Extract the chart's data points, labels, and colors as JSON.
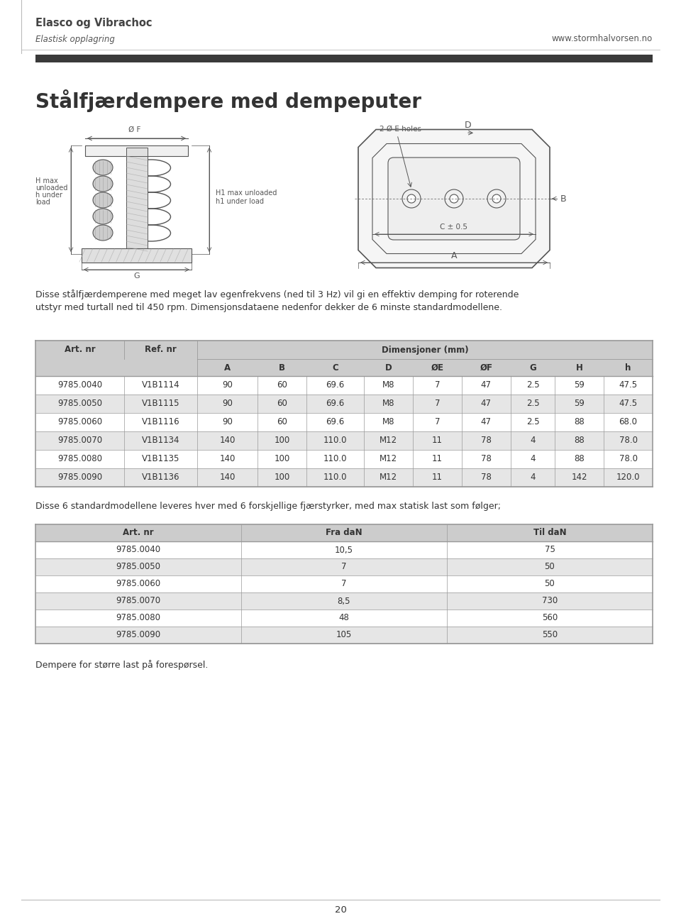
{
  "page_title": "Elasco og Vibrachoc",
  "page_subtitle": "Elastisk opplagring",
  "page_website": "www.stormhalvorsen.no",
  "page_number": "20",
  "section_title": "Stålfjærdempere med dempeputer",
  "body_text1": "Disse stålfjærdemperene med meget lav egenfrekvens (ned til 3 Hz) vil gi en effektiv demping for roterende",
  "body_text2": "utstyr med turtall ned til 450 rpm. Dimensjonsdataene nedenfor dekker de 6 minste standardmodellene.",
  "table1_header_row2": [
    "A",
    "B",
    "C",
    "D",
    "ØE",
    "ØF",
    "G",
    "H",
    "h"
  ],
  "table1_data": [
    [
      "9785.0040",
      "V1B1114",
      "90",
      "60",
      "69.6",
      "M8",
      "7",
      "47",
      "2.5",
      "59",
      "47.5"
    ],
    [
      "9785.0050",
      "V1B1115",
      "90",
      "60",
      "69.6",
      "M8",
      "7",
      "47",
      "2.5",
      "59",
      "47.5"
    ],
    [
      "9785.0060",
      "V1B1116",
      "90",
      "60",
      "69.6",
      "M8",
      "7",
      "47",
      "2.5",
      "88",
      "68.0"
    ],
    [
      "9785.0070",
      "V1B1134",
      "140",
      "100",
      "110.0",
      "M12",
      "11",
      "78",
      "4",
      "88",
      "78.0"
    ],
    [
      "9785.0080",
      "V1B1135",
      "140",
      "100",
      "110.0",
      "M12",
      "11",
      "78",
      "4",
      "88",
      "78.0"
    ],
    [
      "9785.0090",
      "V1B1136",
      "140",
      "100",
      "110.0",
      "M12",
      "11",
      "78",
      "4",
      "142",
      "120.0"
    ]
  ],
  "body_text3": "Disse 6 standardmodellene leveres hver med 6 forskjellige fjærstyrker, med max statisk last som følger;",
  "table2_headers": [
    "Art. nr",
    "Fra daN",
    "Til daN"
  ],
  "table2_data": [
    [
      "9785.0040",
      "10,5",
      "75"
    ],
    [
      "9785.0050",
      "7",
      "50"
    ],
    [
      "9785.0060",
      "7",
      "50"
    ],
    [
      "9785.0070",
      "8,5",
      "730"
    ],
    [
      "9785.0080",
      "48",
      "560"
    ],
    [
      "9785.0090",
      "105",
      "550"
    ]
  ],
  "footer_text": "Dempere for større last på forespørsel.",
  "bg_color": "#ffffff",
  "header_bar_color": "#3a3a3a",
  "table_header_bg": "#cccccc",
  "table_alt_row_bg": "#e6e6e6",
  "table_border_color": "#999999",
  "text_color": "#333333",
  "draw_color": "#555555",
  "draw_light": "#aaaaaa"
}
